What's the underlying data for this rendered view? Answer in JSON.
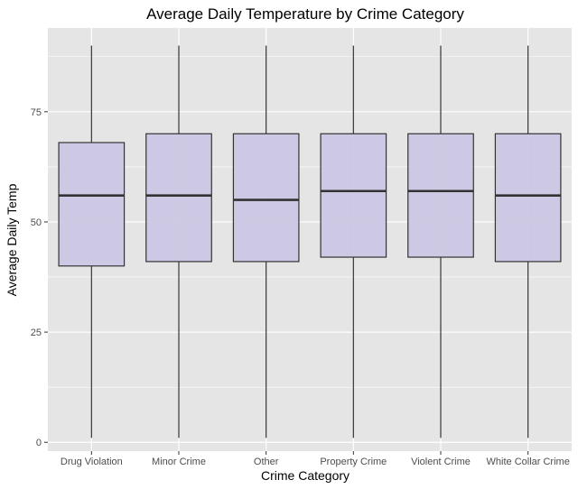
{
  "chart_data": {
    "type": "boxplot",
    "title": "Average Daily Temperature by Crime Category",
    "xlabel": "Crime Category",
    "ylabel": "Average Daily Temp",
    "ylim": [
      -2,
      94
    ],
    "yticks": [
      0,
      25,
      50,
      75
    ],
    "grid": true,
    "colors": {
      "panel": "#e5e5e5",
      "grid_major": "#ffffff",
      "box_fill": "#cbc6e3",
      "box_stroke": "#333333",
      "tick_label": "#4d4d4d"
    },
    "categories": [
      "Drug Violation",
      "Minor Crime",
      "Other",
      "Property Crime",
      "Violent Crime",
      "White Collar Crime"
    ],
    "boxes": [
      {
        "min": 1,
        "q1": 40,
        "median": 56,
        "q3": 68,
        "max": 90
      },
      {
        "min": 1,
        "q1": 41,
        "median": 56,
        "q3": 70,
        "max": 90
      },
      {
        "min": 1,
        "q1": 41,
        "median": 55,
        "q3": 70,
        "max": 90
      },
      {
        "min": 1,
        "q1": 42,
        "median": 57,
        "q3": 70,
        "max": 90
      },
      {
        "min": 1,
        "q1": 42,
        "median": 57,
        "q3": 70,
        "max": 90
      },
      {
        "min": 1,
        "q1": 41,
        "median": 56,
        "q3": 70,
        "max": 90
      }
    ]
  }
}
